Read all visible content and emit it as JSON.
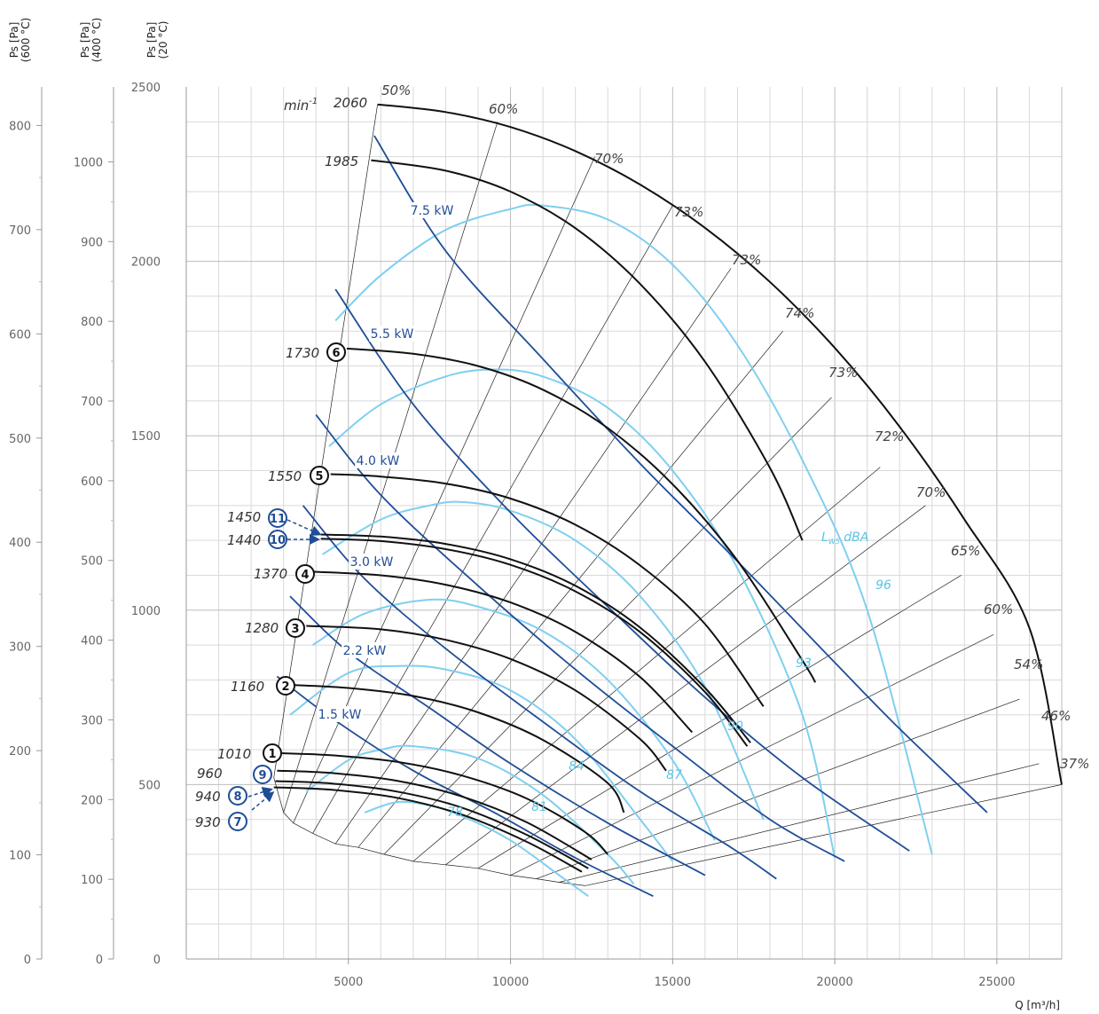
{
  "chart_data": {
    "type": "line",
    "title": "",
    "xlabel": "Q [m³/h]",
    "xlim": [
      0,
      27000
    ],
    "x_ticks": [
      "5000",
      "10000",
      "15000",
      "20000",
      "25000"
    ],
    "y_axes": [
      {
        "label": "Ps [Pa]\n(20 °C)",
        "ylim": [
          0,
          2500
        ],
        "ticks": [
          "0",
          "500",
          "1000",
          "1500",
          "2000",
          "2500"
        ]
      },
      {
        "label": "Ps [Pa]\n(400 °C)",
        "ylim": [
          0,
          1094
        ],
        "ticks": [
          "0",
          "100",
          "200",
          "300",
          "400",
          "500",
          "600",
          "700",
          "800",
          "900",
          "1000"
        ]
      },
      {
        "label": "Ps [Pa]\n(600 °C)",
        "ylim": [
          0,
          837
        ],
        "ticks": [
          "0",
          "100",
          "200",
          "300",
          "400",
          "500",
          "600",
          "700",
          "800"
        ]
      }
    ],
    "grid": true,
    "speed_unit": "min",
    "speed_unit_exp": "-1",
    "speed_curves": [
      {
        "speed": "2060",
        "marker": "",
        "marker_color": "",
        "x": [
          5900,
          8000,
          10000,
          12000,
          14000,
          16000,
          18000,
          20000,
          22000,
          24000,
          26000,
          27000
        ],
        "y": [
          2450,
          2428,
          2385,
          2316,
          2220,
          2096,
          1941,
          1752,
          1526,
          1260,
          950,
          500
        ]
      },
      {
        "speed": "1985",
        "marker": "",
        "marker_color": "",
        "x": [
          5700,
          8000,
          10000,
          12000,
          14000,
          16000,
          18000,
          19000
        ],
        "y": [
          2290,
          2260,
          2200,
          2095,
          1935,
          1712,
          1408,
          1200
        ]
      },
      {
        "speed": "1730",
        "marker": "6",
        "marker_color": "black",
        "x": [
          4950,
          7000,
          9000,
          11000,
          13000,
          15000,
          17000,
          19000,
          19400
        ],
        "y": [
          1750,
          1735,
          1700,
          1632,
          1522,
          1361,
          1142,
          856,
          793
        ]
      },
      {
        "speed": "1550",
        "marker": "5",
        "marker_color": "black",
        "x": [
          4450,
          6000,
          8000,
          10000,
          12000,
          14000,
          16000,
          17800
        ],
        "y": [
          1390,
          1383,
          1363,
          1320,
          1245,
          1128,
          960,
          724
        ]
      },
      {
        "speed": "1450",
        "marker": "11",
        "marker_color": "blue",
        "x": [
          4150,
          6000,
          8000,
          10000,
          12000,
          14000,
          16000,
          17400
        ],
        "y": [
          1217,
          1211,
          1190,
          1146,
          1070,
          950,
          777,
          620
        ]
      },
      {
        "speed": "1440",
        "marker": "10",
        "marker_color": "blue",
        "x": [
          4150,
          6000,
          8000,
          10000,
          12000,
          14000,
          16000,
          17300
        ],
        "y": [
          1205,
          1198,
          1175,
          1130,
          1054,
          937,
          765,
          610
        ]
      },
      {
        "speed": "1370",
        "marker": "4",
        "marker_color": "black",
        "x": [
          3950,
          6000,
          8000,
          10000,
          12000,
          14000,
          15600
        ],
        "y": [
          1110,
          1100,
          1073,
          1022,
          938,
          808,
          650
        ]
      },
      {
        "speed": "1280",
        "marker": "3",
        "marker_color": "black",
        "x": [
          3700,
          6000,
          8000,
          10000,
          12000,
          14000,
          14800
        ],
        "y": [
          955,
          945,
          915,
          860,
          770,
          630,
          540
        ]
      },
      {
        "speed": "1160",
        "marker": "2",
        "marker_color": "black",
        "x": [
          3350,
          5000,
          7000,
          9000,
          11000,
          13000,
          13500
        ],
        "y": [
          785,
          777,
          754,
          707,
          628,
          504,
          420
        ]
      },
      {
        "speed": "1010",
        "marker": "1",
        "marker_color": "black",
        "x": [
          2900,
          4500,
          6500,
          8500,
          10500,
          12300,
          13000
        ],
        "y": [
          590,
          584,
          565,
          526,
          460,
          364,
          300
        ]
      },
      {
        "speed": "960",
        "marker": "9",
        "marker_color": "blue",
        "x": [
          2800,
          4500,
          6500,
          8500,
          10500,
          12500
        ],
        "y": [
          540,
          533,
          511,
          466,
          392,
          285
        ]
      },
      {
        "speed": "940",
        "marker": "8",
        "marker_color": "blue",
        "x": [
          2750,
          4500,
          6500,
          8500,
          10500,
          12400
        ],
        "y": [
          510,
          503,
          480,
          434,
          356,
          260
        ]
      },
      {
        "speed": "930",
        "marker": "7",
        "marker_color": "blue",
        "x": [
          2700,
          4500,
          6500,
          8500,
          10500,
          12200
        ],
        "y": [
          492,
          485,
          462,
          414,
          336,
          250
        ]
      }
    ],
    "efficiency_lines": [
      {
        "label": "50%",
        "x": [
          2700,
          5900
        ],
        "y": [
          520,
          2450
        ]
      },
      {
        "label": "60%",
        "x": [
          3000,
          9600
        ],
        "y": [
          420,
          2400
        ]
      },
      {
        "label": "70%",
        "x": [
          3300,
          12600
        ],
        "y": [
          390,
          2300
        ]
      },
      {
        "label": "73%",
        "x": [
          3900,
          15000
        ],
        "y": [
          360,
          2160
        ]
      },
      {
        "label": "73%",
        "x": [
          4600,
          16800
        ],
        "y": [
          330,
          1980
        ]
      },
      {
        "label": "74%",
        "x": [
          5300,
          18400
        ],
        "y": [
          320,
          1800
        ]
      },
      {
        "label": "73%",
        "x": [
          6100,
          19900
        ],
        "y": [
          300,
          1610
        ]
      },
      {
        "label": "72%",
        "x": [
          7000,
          21400
        ],
        "y": [
          280,
          1410
        ]
      },
      {
        "label": "70%",
        "x": [
          8000,
          22800
        ],
        "y": [
          270,
          1300
        ]
      },
      {
        "label": "65%",
        "x": [
          9000,
          23900
        ],
        "y": [
          260,
          1100
        ]
      },
      {
        "label": "60%",
        "x": [
          10000,
          24900
        ],
        "y": [
          240,
          930
        ]
      },
      {
        "label": "54%",
        "x": [
          10800,
          25700
        ],
        "y": [
          230,
          745
        ]
      },
      {
        "label": "46%",
        "x": [
          11500,
          26300
        ],
        "y": [
          220,
          560
        ]
      },
      {
        "label": "37%",
        "x": [
          12300,
          27000
        ],
        "y": [
          210,
          500
        ]
      }
    ],
    "power_lines": [
      {
        "label": "7.5 kW",
        "x": [
          5800,
          8000,
          11000,
          14000,
          17000,
          20000,
          22000,
          24700
        ],
        "y": [
          2360,
          2030,
          1720,
          1420,
          1140,
          850,
          660,
          420
        ]
      },
      {
        "label": "5.5 kW",
        "x": [
          4600,
          7000,
          10000,
          13000,
          16000,
          19000,
          22300
        ],
        "y": [
          1920,
          1590,
          1280,
          1010,
          750,
          520,
          310
        ]
      },
      {
        "label": "4.0 kW",
        "x": [
          4000,
          6000,
          9000,
          12000,
          15000,
          18000,
          20300
        ],
        "y": [
          1560,
          1330,
          1070,
          830,
          610,
          400,
          280
        ]
      },
      {
        "label": "3.0 kW",
        "x": [
          3600,
          5500,
          8000,
          11000,
          14000,
          16800,
          18200
        ],
        "y": [
          1300,
          1090,
          890,
          680,
          480,
          320,
          230
        ]
      },
      {
        "label": "2.2 kW",
        "x": [
          3200,
          5000,
          7500,
          10000,
          13000,
          16000
        ],
        "y": [
          1040,
          880,
          720,
          560,
          390,
          240
        ]
      },
      {
        "label": "1.5 kW",
        "x": [
          2800,
          4500,
          7000,
          9500,
          12000,
          14400
        ],
        "y": [
          810,
          690,
          540,
          420,
          290,
          180
        ]
      }
    ],
    "sound_curves": [
      {
        "label": "96",
        "x": [
          4600,
          6000,
          8000,
          10000,
          11000,
          13000,
          15000,
          17000,
          19000,
          21000,
          23000
        ],
        "y": [
          1830,
          1960,
          2090,
          2150,
          2160,
          2120,
          1990,
          1760,
          1430,
          1000,
          300
        ]
      },
      {
        "label": "93",
        "x": [
          4400,
          6000,
          8000,
          9500,
          11000,
          13000,
          15000,
          17000,
          19000,
          20000
        ],
        "y": [
          1470,
          1590,
          1670,
          1690,
          1670,
          1580,
          1400,
          1120,
          700,
          290
        ]
      },
      {
        "label": "90",
        "x": [
          4200,
          6000,
          7500,
          8500,
          10000,
          12000,
          14000,
          16000,
          17800
        ],
        "y": [
          1160,
          1260,
          1300,
          1310,
          1285,
          1200,
          1040,
          780,
          400
        ]
      },
      {
        "label": "87",
        "x": [
          3900,
          5500,
          7500,
          9000,
          11000,
          13000,
          15000,
          16300
        ],
        "y": [
          900,
          990,
          1030,
          1010,
          940,
          800,
          570,
          340
        ]
      },
      {
        "label": "84",
        "x": [
          3200,
          5000,
          6500,
          8000,
          10000,
          12000,
          14000,
          15000
        ],
        "y": [
          700,
          820,
          840,
          830,
          770,
          630,
          400,
          280
        ]
      },
      {
        "label": "81",
        "x": [
          3700,
          5000,
          6000,
          7000,
          9000,
          11000,
          13000,
          13800
        ],
        "y": [
          480,
          570,
          600,
          610,
          575,
          470,
          300,
          215
        ]
      },
      {
        "label": "78",
        "x": [
          5500,
          6500,
          7500,
          8500,
          10000,
          11500,
          12400
        ],
        "y": [
          420,
          450,
          440,
          410,
          340,
          240,
          180
        ]
      }
    ],
    "lw_label": "L",
    "lw_sub": "W5",
    "lw_unit": "dBA"
  }
}
